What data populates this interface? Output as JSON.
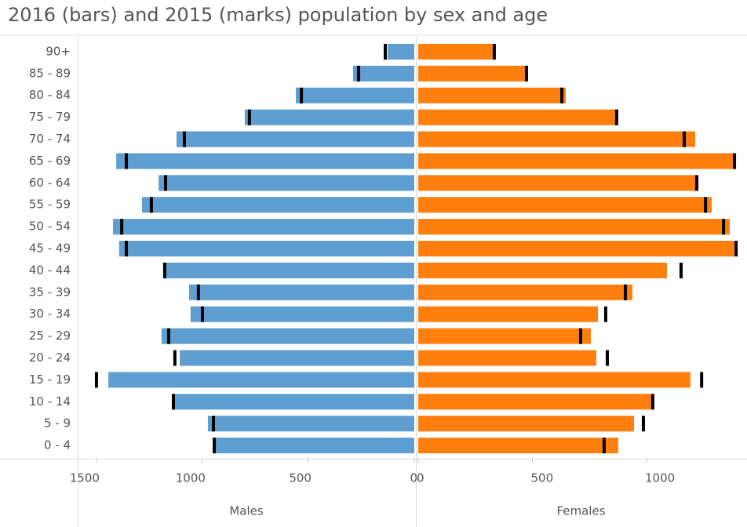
{
  "title": "2016 (bars) and 2015 (marks) population by sex and age",
  "chart_data": [
    {
      "type": "bar",
      "orientation": "horizontal",
      "x_reversed": true,
      "xlabel": "Males",
      "categories": [
        "90+",
        "85 - 89",
        "80 - 84",
        "75 - 79",
        "70 - 74",
        "65 - 69",
        "60 - 64",
        "55 - 59",
        "50 - 54",
        "45 - 49",
        "40 - 44",
        "35 - 39",
        "30 - 34",
        "25 - 29",
        "20 - 24",
        "15 - 19",
        "10 - 14",
        "5 - 9",
        "0 - 4"
      ],
      "values": [
        126,
        289,
        559,
        800,
        1122,
        1407,
        1207,
        1285,
        1422,
        1393,
        1178,
        1063,
        1056,
        1193,
        1107,
        1444,
        1137,
        974,
        937
      ],
      "marks": [
        137,
        263,
        533,
        778,
        1085,
        1359,
        1174,
        1241,
        1381,
        1359,
        1178,
        1019,
        1000,
        1159,
        1130,
        1500,
        1137,
        948,
        944
      ],
      "color": "#5f9ed1",
      "mark_color": "#000000",
      "xlim": [
        0,
        1585
      ],
      "xticks": [
        0,
        500,
        1000,
        1500
      ]
    },
    {
      "type": "bar",
      "orientation": "horizontal",
      "x_reversed": false,
      "xlabel": "Females",
      "values": [
        326,
        471,
        646,
        869,
        1213,
        1385,
        1216,
        1285,
        1364,
        1385,
        1089,
        938,
        787,
        756,
        780,
        1192,
        1027,
        945,
        876
      ],
      "marks": [
        333,
        474,
        629,
        869,
        1165,
        1385,
        1220,
        1258,
        1337,
        1392,
        1151,
        907,
        821,
        711,
        828,
        1241,
        1027,
        986,
        814
      ],
      "color": "#ff7f0e",
      "mark_color": "#000000",
      "xlim": [
        0,
        1426
      ],
      "xticks": [
        0,
        500,
        1000
      ]
    }
  ]
}
